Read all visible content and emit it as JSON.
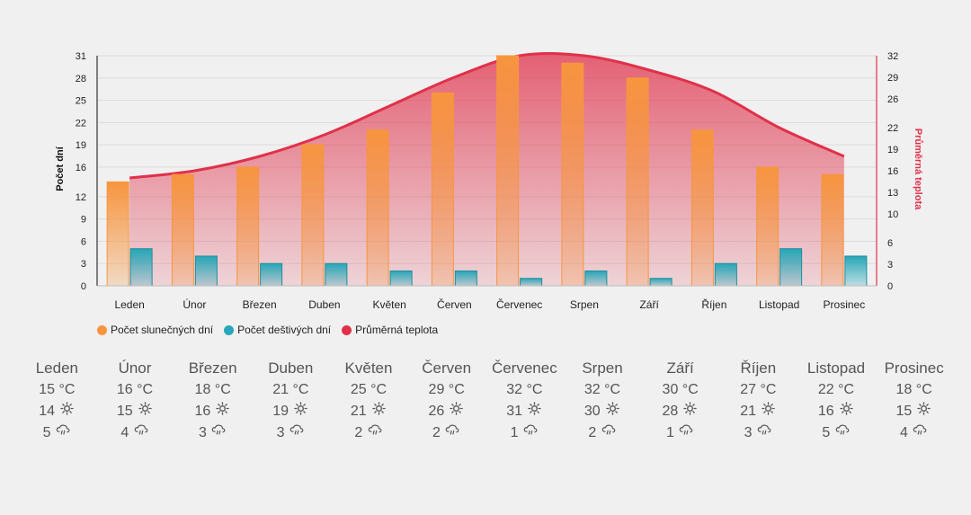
{
  "chart_data": {
    "type": "bar",
    "categories": [
      "Leden",
      "Únor",
      "Březen",
      "Duben",
      "Květen",
      "Červen",
      "Červenec",
      "Srpen",
      "Září",
      "Říjen",
      "Listopad",
      "Prosinec"
    ],
    "series": [
      {
        "name": "Počet slunečných dní",
        "type": "bar",
        "color": "#f7953f",
        "values": [
          14,
          15,
          16,
          19,
          21,
          26,
          31,
          30,
          28,
          21,
          16,
          15
        ]
      },
      {
        "name": "Počet deštivých dní",
        "type": "bar",
        "color": "#27a7b8",
        "values": [
          5,
          4,
          3,
          3,
          2,
          2,
          1,
          2,
          1,
          3,
          5,
          4
        ]
      },
      {
        "name": "Průměrná teplota",
        "type": "area",
        "color": "#e0314a",
        "values": [
          15,
          16,
          18,
          21,
          25,
          29,
          32,
          32,
          30,
          27,
          22,
          18
        ]
      }
    ],
    "ylabel": "Počet dní",
    "y2label": "Průměrná teplota",
    "ylim": [
      0,
      31
    ],
    "y2lim": [
      0,
      32
    ],
    "yticks": [
      "0",
      "3",
      "6",
      "9",
      "12",
      "16",
      "19",
      "22",
      "25",
      "28",
      "31"
    ],
    "y2ticks": [
      "0",
      "3",
      "6",
      "10",
      "13",
      "16",
      "19",
      "22",
      "26",
      "29",
      "32"
    ],
    "legend_position": "bottom-left",
    "grid": true
  },
  "summary": {
    "months": [
      {
        "name": "Leden",
        "temp": "15 °C",
        "sun": "14",
        "rain": "5"
      },
      {
        "name": "Únor",
        "temp": "16 °C",
        "sun": "15",
        "rain": "4"
      },
      {
        "name": "Březen",
        "temp": "18 °C",
        "sun": "16",
        "rain": "3"
      },
      {
        "name": "Duben",
        "temp": "21 °C",
        "sun": "19",
        "rain": "3"
      },
      {
        "name": "Květen",
        "temp": "25 °C",
        "sun": "21",
        "rain": "2"
      },
      {
        "name": "Červen",
        "temp": "29 °C",
        "sun": "26",
        "rain": "2"
      },
      {
        "name": "Červenec",
        "temp": "32 °C",
        "sun": "31",
        "rain": "1"
      },
      {
        "name": "Srpen",
        "temp": "32 °C",
        "sun": "30",
        "rain": "2"
      },
      {
        "name": "Září",
        "temp": "30 °C",
        "sun": "28",
        "rain": "1"
      },
      {
        "name": "Říjen",
        "temp": "27 °C",
        "sun": "21",
        "rain": "3"
      },
      {
        "name": "Listopad",
        "temp": "22 °C",
        "sun": "16",
        "rain": "5"
      },
      {
        "name": "Prosinec",
        "temp": "18 °C",
        "sun": "15",
        "rain": "4"
      }
    ],
    "sun_icon": "sun-icon",
    "rain_icon": "cloud-rain-icon"
  }
}
